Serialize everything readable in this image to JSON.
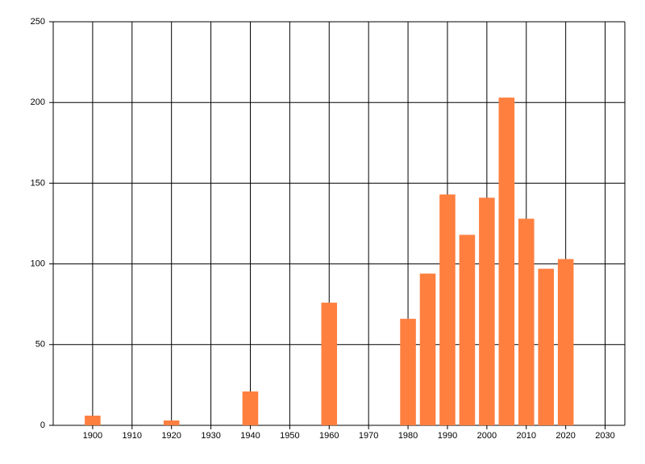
{
  "chart_data": {
    "type": "bar",
    "x": [
      1900,
      1920,
      1940,
      1960,
      1980,
      1985,
      1990,
      1995,
      2000,
      2005,
      2010,
      2015,
      2020
    ],
    "values": [
      6,
      3,
      21,
      76,
      66,
      94,
      143,
      118,
      141,
      203,
      128,
      97,
      103
    ],
    "color": "#ff7f3f",
    "xlim": [
      1890,
      2035
    ],
    "xticks": [
      1900,
      1910,
      1920,
      1930,
      1940,
      1950,
      1960,
      1970,
      1980,
      1990,
      2000,
      2010,
      2020,
      2030
    ],
    "ylim": [
      0,
      250
    ],
    "yticks": [
      0,
      50,
      100,
      150,
      200,
      250
    ],
    "grid": true
  }
}
